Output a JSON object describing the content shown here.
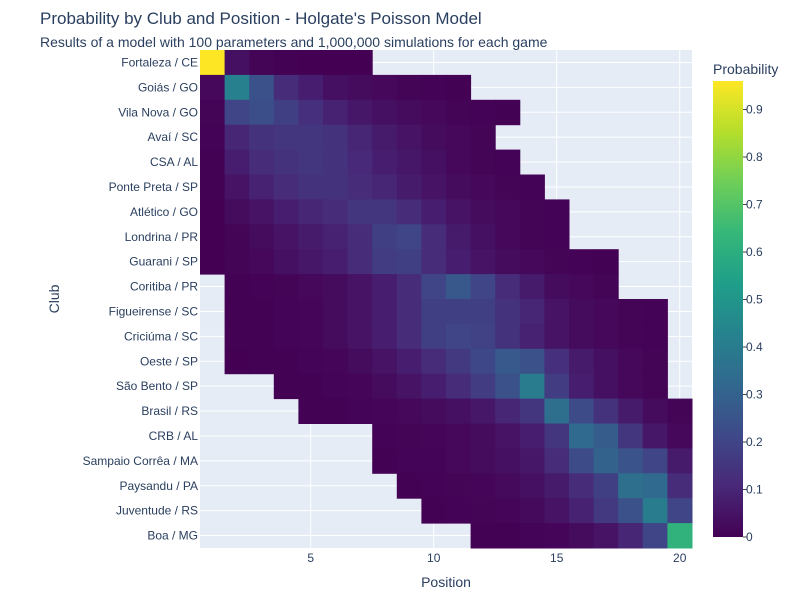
{
  "chart_data": {
    "type": "heatmap",
    "title": "Probability by Club and Position - Holgate's Poisson Model",
    "subtitle": "Results of a model with 100 parameters and 1,000,000 simulations for each game",
    "xlabel": "Position",
    "ylabel": "Club",
    "x_tick_values": [
      5,
      10,
      15,
      20
    ],
    "x_range": [
      0.5,
      20.5
    ],
    "colorbar": {
      "title": "Probability",
      "colorscale": "Viridis",
      "range": [
        0,
        0.96
      ],
      "ticks": [
        0,
        0.1,
        0.2,
        0.3,
        0.4,
        0.5,
        0.6,
        0.7,
        0.8,
        0.9
      ]
    },
    "positions": [
      1,
      2,
      3,
      4,
      5,
      6,
      7,
      8,
      9,
      10,
      11,
      12,
      13,
      14,
      15,
      16,
      17,
      18,
      19,
      20
    ],
    "clubs": [
      "Fortaleza / CE",
      "Goiás / GO",
      "Vila Nova / GO",
      "Avaí / SC",
      "CSA / AL",
      "Ponte Preta / SP",
      "Atlético / GO",
      "Londrina / PR",
      "Guarani / SP",
      "Coritiba / PR",
      "Figueirense / SC",
      "Criciúma / SC",
      "Oeste / SP",
      "São Bento / SP",
      "Brasil / RS",
      "CRB / AL",
      "Sampaio Corrêa / MA",
      "Paysandu / PA",
      "Juventude / RS",
      "Boa / MG"
    ],
    "z": [
      [
        0.96,
        0.04,
        0.01,
        0.003,
        0.001,
        0.001,
        0.0005,
        null,
        null,
        null,
        null,
        null,
        null,
        null,
        null,
        null,
        null,
        null,
        null,
        null
      ],
      [
        0.02,
        0.42,
        0.24,
        0.12,
        0.08,
        0.04,
        0.03,
        0.02,
        0.01,
        0.005,
        0.003,
        null,
        null,
        null,
        null,
        null,
        null,
        null,
        null,
        null
      ],
      [
        0.01,
        0.2,
        0.23,
        0.18,
        0.13,
        0.09,
        0.06,
        0.04,
        0.03,
        0.02,
        0.01,
        0.005,
        0.003,
        null,
        null,
        null,
        null,
        null,
        null,
        null
      ],
      [
        0.005,
        0.1,
        0.14,
        0.15,
        0.15,
        0.14,
        0.1,
        0.07,
        0.05,
        0.03,
        0.02,
        0.01,
        null,
        null,
        null,
        null,
        null,
        null,
        null,
        null
      ],
      [
        0.003,
        0.08,
        0.12,
        0.14,
        0.15,
        0.14,
        0.11,
        0.08,
        0.06,
        0.04,
        0.02,
        0.01,
        0.005,
        null,
        null,
        null,
        null,
        null,
        null,
        null
      ],
      [
        0.002,
        0.05,
        0.09,
        0.12,
        0.14,
        0.14,
        0.12,
        0.1,
        0.07,
        0.05,
        0.03,
        0.02,
        0.01,
        0.005,
        null,
        null,
        null,
        null,
        null,
        null
      ],
      [
        0.001,
        0.03,
        0.05,
        0.08,
        0.1,
        0.12,
        0.15,
        0.15,
        0.12,
        0.08,
        0.05,
        0.03,
        0.02,
        0.01,
        0.005,
        null,
        null,
        null,
        null,
        null
      ],
      [
        0.0005,
        0.01,
        0.03,
        0.05,
        0.07,
        0.09,
        0.12,
        0.18,
        0.2,
        0.12,
        0.07,
        0.04,
        0.02,
        0.01,
        0.005,
        null,
        null,
        null,
        null,
        null
      ],
      [
        0.0003,
        0.01,
        0.02,
        0.04,
        0.06,
        0.08,
        0.12,
        0.17,
        0.18,
        0.12,
        0.08,
        0.05,
        0.03,
        0.02,
        0.01,
        0.005,
        0.003,
        null,
        null,
        null
      ],
      [
        null,
        0.003,
        0.005,
        0.01,
        0.02,
        0.03,
        0.05,
        0.08,
        0.12,
        0.2,
        0.26,
        0.2,
        0.12,
        0.07,
        0.03,
        0.02,
        0.01,
        null,
        null,
        null
      ],
      [
        null,
        0.002,
        0.004,
        0.008,
        0.015,
        0.03,
        0.05,
        0.08,
        0.12,
        0.18,
        0.18,
        0.18,
        0.14,
        0.1,
        0.05,
        0.03,
        0.02,
        0.01,
        0.005,
        null
      ],
      [
        null,
        0.002,
        0.004,
        0.008,
        0.015,
        0.03,
        0.05,
        0.08,
        0.12,
        0.18,
        0.2,
        0.19,
        0.14,
        0.09,
        0.05,
        0.03,
        0.02,
        0.01,
        0.005,
        null
      ],
      [
        null,
        0.001,
        0.002,
        0.004,
        0.008,
        0.015,
        0.03,
        0.05,
        0.08,
        0.12,
        0.16,
        0.21,
        0.27,
        0.24,
        0.13,
        0.07,
        0.04,
        0.02,
        0.01,
        null
      ],
      [
        null,
        null,
        null,
        0.002,
        0.004,
        0.008,
        0.015,
        0.03,
        0.05,
        0.08,
        0.12,
        0.17,
        0.24,
        0.4,
        0.17,
        0.08,
        0.04,
        0.02,
        0.01,
        null
      ],
      [
        null,
        null,
        null,
        null,
        0.002,
        0.004,
        0.008,
        0.015,
        0.02,
        0.03,
        0.04,
        0.06,
        0.1,
        0.15,
        0.35,
        0.22,
        0.14,
        0.07,
        0.03,
        0.01
      ],
      [
        null,
        null,
        null,
        null,
        null,
        null,
        null,
        0.005,
        0.01,
        0.015,
        0.02,
        0.03,
        0.05,
        0.08,
        0.15,
        0.33,
        0.28,
        0.15,
        0.06,
        0.02
      ],
      [
        null,
        null,
        null,
        null,
        null,
        null,
        null,
        0.004,
        0.008,
        0.012,
        0.02,
        0.03,
        0.04,
        0.06,
        0.12,
        0.22,
        0.3,
        0.25,
        0.2,
        0.07
      ],
      [
        null,
        null,
        null,
        null,
        null,
        null,
        null,
        null,
        0.003,
        0.006,
        0.01,
        0.015,
        0.025,
        0.04,
        0.07,
        0.12,
        0.18,
        0.35,
        0.33,
        0.12
      ],
      [
        null,
        null,
        null,
        null,
        null,
        null,
        null,
        null,
        null,
        0.003,
        0.006,
        0.01,
        0.015,
        0.025,
        0.05,
        0.09,
        0.16,
        0.24,
        0.4,
        0.2
      ],
      [
        null,
        null,
        null,
        null,
        null,
        null,
        null,
        null,
        null,
        null,
        null,
        0.002,
        0.004,
        0.008,
        0.015,
        0.03,
        0.05,
        0.1,
        0.2,
        0.62
      ]
    ]
  }
}
